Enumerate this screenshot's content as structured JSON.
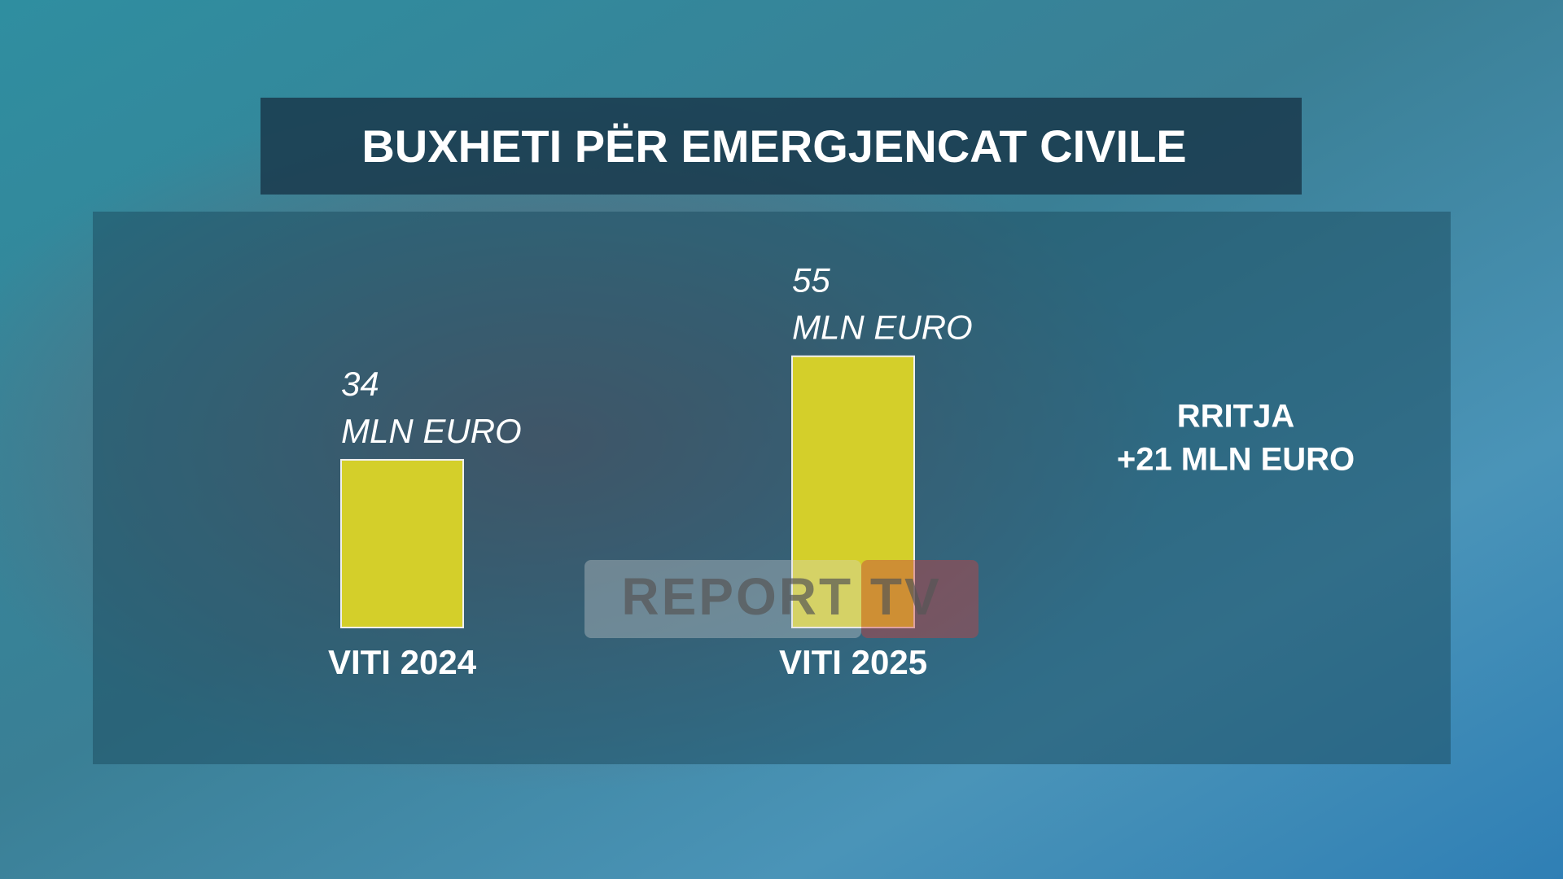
{
  "chart_data": {
    "type": "bar",
    "title": "BUXHETI PËR EMERGJENCAT CIVILE",
    "categories": [
      "VITI 2024",
      "VITI 2025"
    ],
    "values": [
      34,
      55
    ],
    "value_labels": [
      "34\nMLN EURO",
      "55\nMLN EURO"
    ],
    "color": "#d4cf2a",
    "annotations": [
      "RRITJA",
      "+21 MLN EURO"
    ],
    "watermark": "REPORT TV"
  }
}
